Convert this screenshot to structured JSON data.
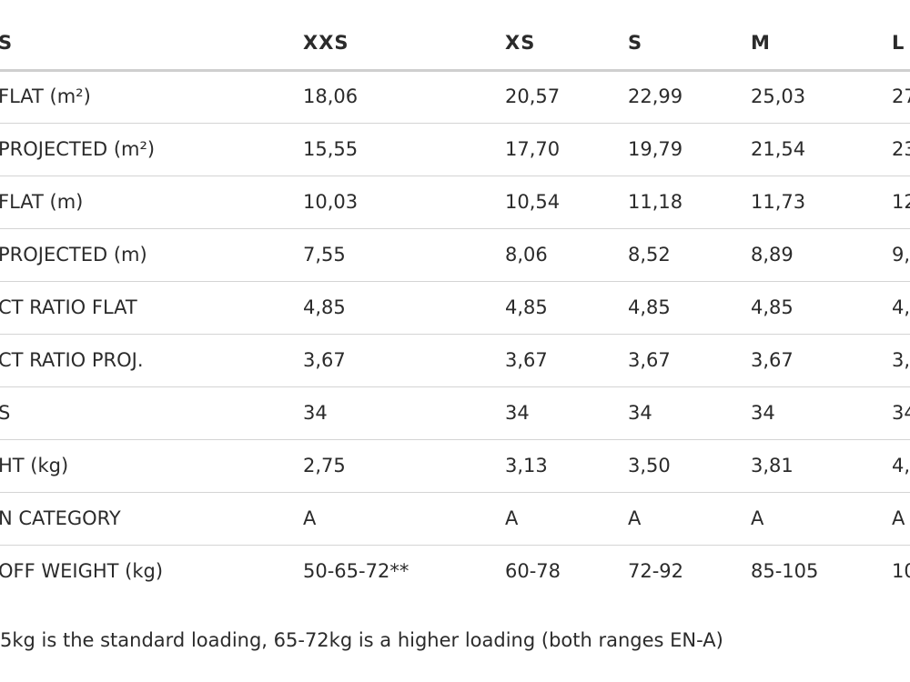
{
  "table": {
    "header": [
      "S",
      "XXS",
      "XS",
      "S",
      "M",
      "L"
    ],
    "rows": [
      [
        "FLAT (m²)",
        "18,06",
        "20,57",
        "22,99",
        "25,03",
        "27"
      ],
      [
        "PROJECTED (m²)",
        "15,55",
        "17,70",
        "19,79",
        "21,54",
        "23"
      ],
      [
        "FLAT (m)",
        "10,03",
        "10,54",
        "11,18",
        "11,73",
        "12"
      ],
      [
        "PROJECTED (m)",
        "7,55",
        "8,06",
        "8,52",
        "8,89",
        "9,"
      ],
      [
        "CT RATIO FLAT",
        "4,85",
        "4,85",
        "4,85",
        "4,85",
        "4,"
      ],
      [
        "CT RATIO PROJ.",
        "3,67",
        "3,67",
        "3,67",
        "3,67",
        "3,"
      ],
      [
        "S",
        "34",
        "34",
        "34",
        "34",
        "34"
      ],
      [
        "HT (kg)",
        "2,75",
        "3,13",
        "3,50",
        "3,81",
        "4,"
      ],
      [
        "N CATEGORY",
        "A",
        "A",
        "A",
        "A",
        "A"
      ],
      [
        "OFF WEIGHT (kg)",
        "50-65-72**",
        "60-78",
        "72-92",
        "85-105",
        "10"
      ]
    ]
  },
  "footnote": "5kg is the standard loading, 65-72kg is a higher loading (both ranges EN-A)"
}
